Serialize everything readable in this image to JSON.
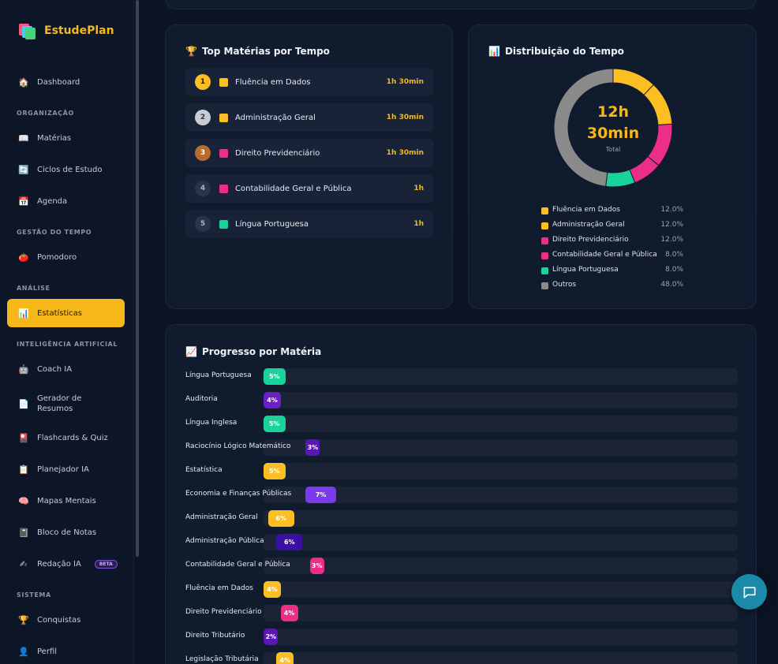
{
  "brand": {
    "name": "EstudePlan"
  },
  "sidebar": {
    "dashboard": {
      "label": "Dashboard",
      "icon": "house-icon"
    },
    "sections": {
      "organizacao": "ORGANIZAÇÃO",
      "gestao": "GESTÃO DO TEMPO",
      "analise": "ANÁLISE",
      "ia": "INTELIGÊNCIA ARTIFICIAL",
      "sistema": "SISTEMA"
    },
    "items": {
      "materias": "Matérias",
      "ciclos": "Ciclos de Estudo",
      "agenda": "Agenda",
      "pomodoro": "Pomodoro",
      "estatisticas": "Estatísticas",
      "coach": "Coach IA",
      "gerador": "Gerador de Resumos",
      "flashcards": "Flashcards & Quiz",
      "planejador": "Planejador IA",
      "mapas": "Mapas Mentais",
      "bloco": "Bloco de Notas",
      "redacao": "Redação IA",
      "redacao_badge": "BETA",
      "conquistas": "Conquistas",
      "perfil": "Perfil"
    }
  },
  "top_subjects": {
    "title": "Top Matérias por Tempo",
    "rows": [
      {
        "rank": "1",
        "name": "Fluência em Dados",
        "time": "1h 30min",
        "color": "#fbbf24"
      },
      {
        "rank": "2",
        "name": "Administração Geral",
        "time": "1h 30min",
        "color": "#fbbf24"
      },
      {
        "rank": "3",
        "name": "Direito Previdenciário",
        "time": "1h 30min",
        "color": "#ec2f86"
      },
      {
        "rank": "4",
        "name": "Contabilidade Geral e Pública",
        "time": "1h",
        "color": "#ec2f86"
      },
      {
        "rank": "5",
        "name": "Língua Portuguesa",
        "time": "1h",
        "color": "#19d39b"
      }
    ]
  },
  "distribution": {
    "title": "Distribuição do Tempo",
    "total_hours": "12h",
    "total_minutes": "30min",
    "total_label": "Total",
    "legend": [
      {
        "name": "Fluência em Dados",
        "value": "12.0%",
        "color": "#fbbf24"
      },
      {
        "name": "Administração Geral",
        "value": "12.0%",
        "color": "#fbbf24"
      },
      {
        "name": "Direito Previdenciário",
        "value": "12.0%",
        "color": "#ec2f86"
      },
      {
        "name": "Contabilidade Geral e Pública",
        "value": "8.0%",
        "color": "#ec2f86"
      },
      {
        "name": "Língua Portuguesa",
        "value": "8.0%",
        "color": "#19d39b"
      },
      {
        "name": "Outros",
        "value": "48.0%",
        "color": "#8a8a8a"
      }
    ]
  },
  "progress": {
    "title": "Progresso por Matéria",
    "rows": [
      {
        "name": "Língua Portuguesa",
        "percent": "5%",
        "value": 5,
        "color": "#19d39b"
      },
      {
        "name": "Auditoria",
        "percent": "4%",
        "value": 4,
        "color": "#6a1fc7"
      },
      {
        "name": "Língua Inglesa",
        "percent": "5%",
        "value": 5,
        "color": "#19d39b"
      },
      {
        "name": "Raciocínio Lógico Matemático",
        "percent": "3%",
        "value": 3,
        "color": "#5b14b8"
      },
      {
        "name": "Estatística",
        "percent": "5%",
        "value": 5,
        "color": "#fbbf24"
      },
      {
        "name": "Economia e Finanças Públicas",
        "percent": "7%",
        "value": 7,
        "color": "#7c3aed"
      },
      {
        "name": "Administração Geral",
        "percent": "6%",
        "value": 6,
        "color": "#fbbf24"
      },
      {
        "name": "Administração Pública",
        "percent": "6%",
        "value": 6,
        "color": "#3b0fa3"
      },
      {
        "name": "Contabilidade Geral e Pública",
        "percent": "3%",
        "value": 3,
        "color": "#ec2f86"
      },
      {
        "name": "Fluência em Dados",
        "percent": "4%",
        "value": 4,
        "color": "#fbbf24"
      },
      {
        "name": "Direito Previdenciário",
        "percent": "4%",
        "value": 4,
        "color": "#ec2f86"
      },
      {
        "name": "Direito Tributário",
        "percent": "2%",
        "value": 2,
        "color": "#5b14b8"
      },
      {
        "name": "Legislação Tributária",
        "percent": "4%",
        "value": 4,
        "color": "#fbbf24"
      }
    ]
  }
}
